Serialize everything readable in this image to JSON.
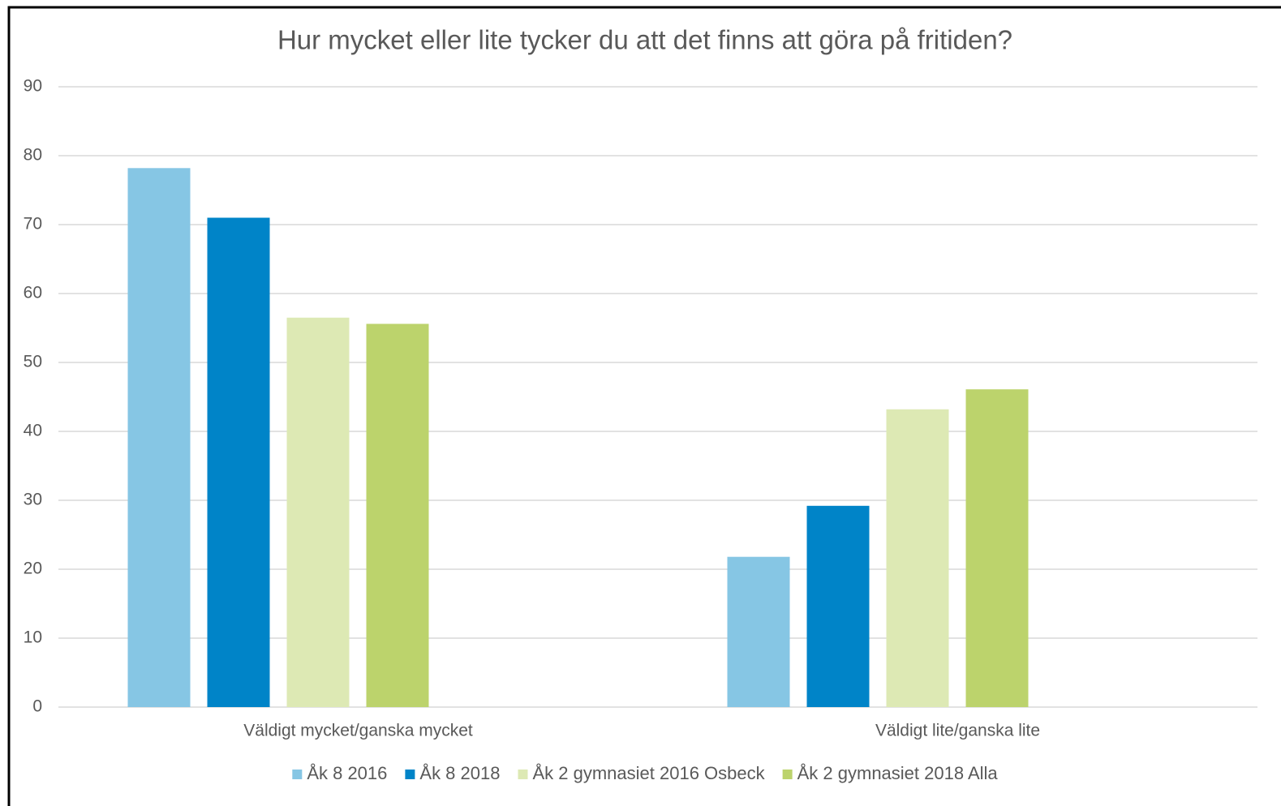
{
  "chart_data": {
    "type": "bar",
    "title": "Hur mycket eller lite tycker du att det finns att göra på fritiden?",
    "categories": [
      "Väldigt mycket/ganska mycket",
      "Väldigt lite/ganska lite"
    ],
    "series": [
      {
        "name": "Åk 8 2016",
        "color": "#86c6e4",
        "values": [
          78.2,
          21.8
        ]
      },
      {
        "name": "Åk 8 2018",
        "color": "#0084c8",
        "values": [
          71,
          29.2
        ]
      },
      {
        "name": "Åk 2 gymnasiet 2016 Osbeck",
        "color": "#dde9b4",
        "values": [
          56.5,
          43.2
        ]
      },
      {
        "name": "Åk 2 gymnasiet 2018 Alla",
        "color": "#bcd36c",
        "values": [
          55.6,
          46.1
        ]
      }
    ],
    "ylim": [
      0,
      90
    ],
    "yticks": [
      0,
      10,
      20,
      30,
      40,
      50,
      60,
      70,
      80,
      90
    ],
    "grid": true,
    "legend": "bottom"
  }
}
